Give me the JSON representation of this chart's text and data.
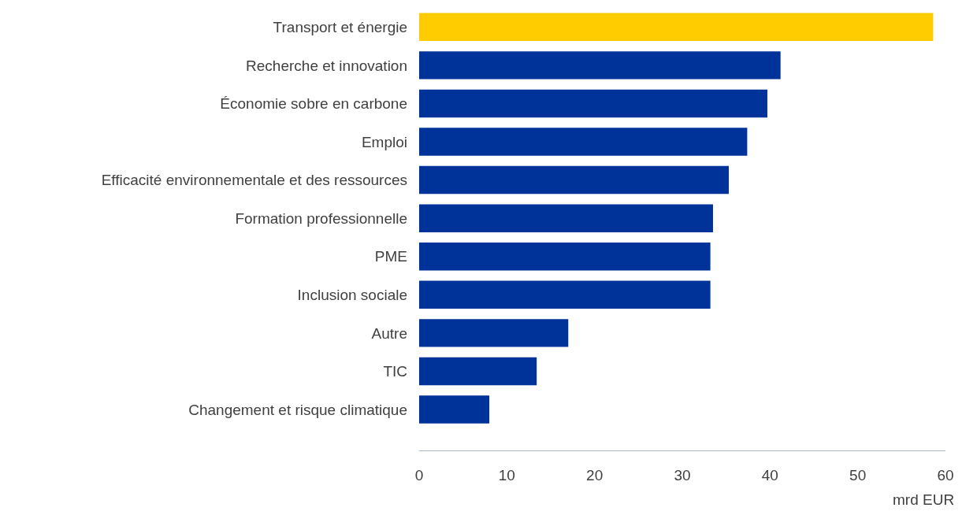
{
  "chart_data": {
    "type": "bar",
    "orientation": "horizontal",
    "categories": [
      "Transport et énergie",
      "Recherche et innovation",
      "Économie sobre en carbone",
      "Emploi",
      "Efficacité environnementale et des ressources",
      "Formation professionnelle",
      "PME",
      "Inclusion sociale",
      "Autre",
      "TIC",
      "Changement et risque climatique"
    ],
    "values": [
      58.6,
      41.2,
      39.7,
      37.4,
      35.3,
      33.5,
      33.2,
      33.2,
      17.0,
      13.4,
      8.0
    ],
    "colors": [
      "#ffcc00",
      "#003399",
      "#003399",
      "#003399",
      "#003399",
      "#003399",
      "#003399",
      "#003399",
      "#003399",
      "#003399",
      "#003399"
    ],
    "xlim": [
      0,
      60
    ],
    "xticks": [
      0,
      10,
      20,
      30,
      40,
      50,
      60
    ],
    "xlabel": "mrd EUR"
  }
}
